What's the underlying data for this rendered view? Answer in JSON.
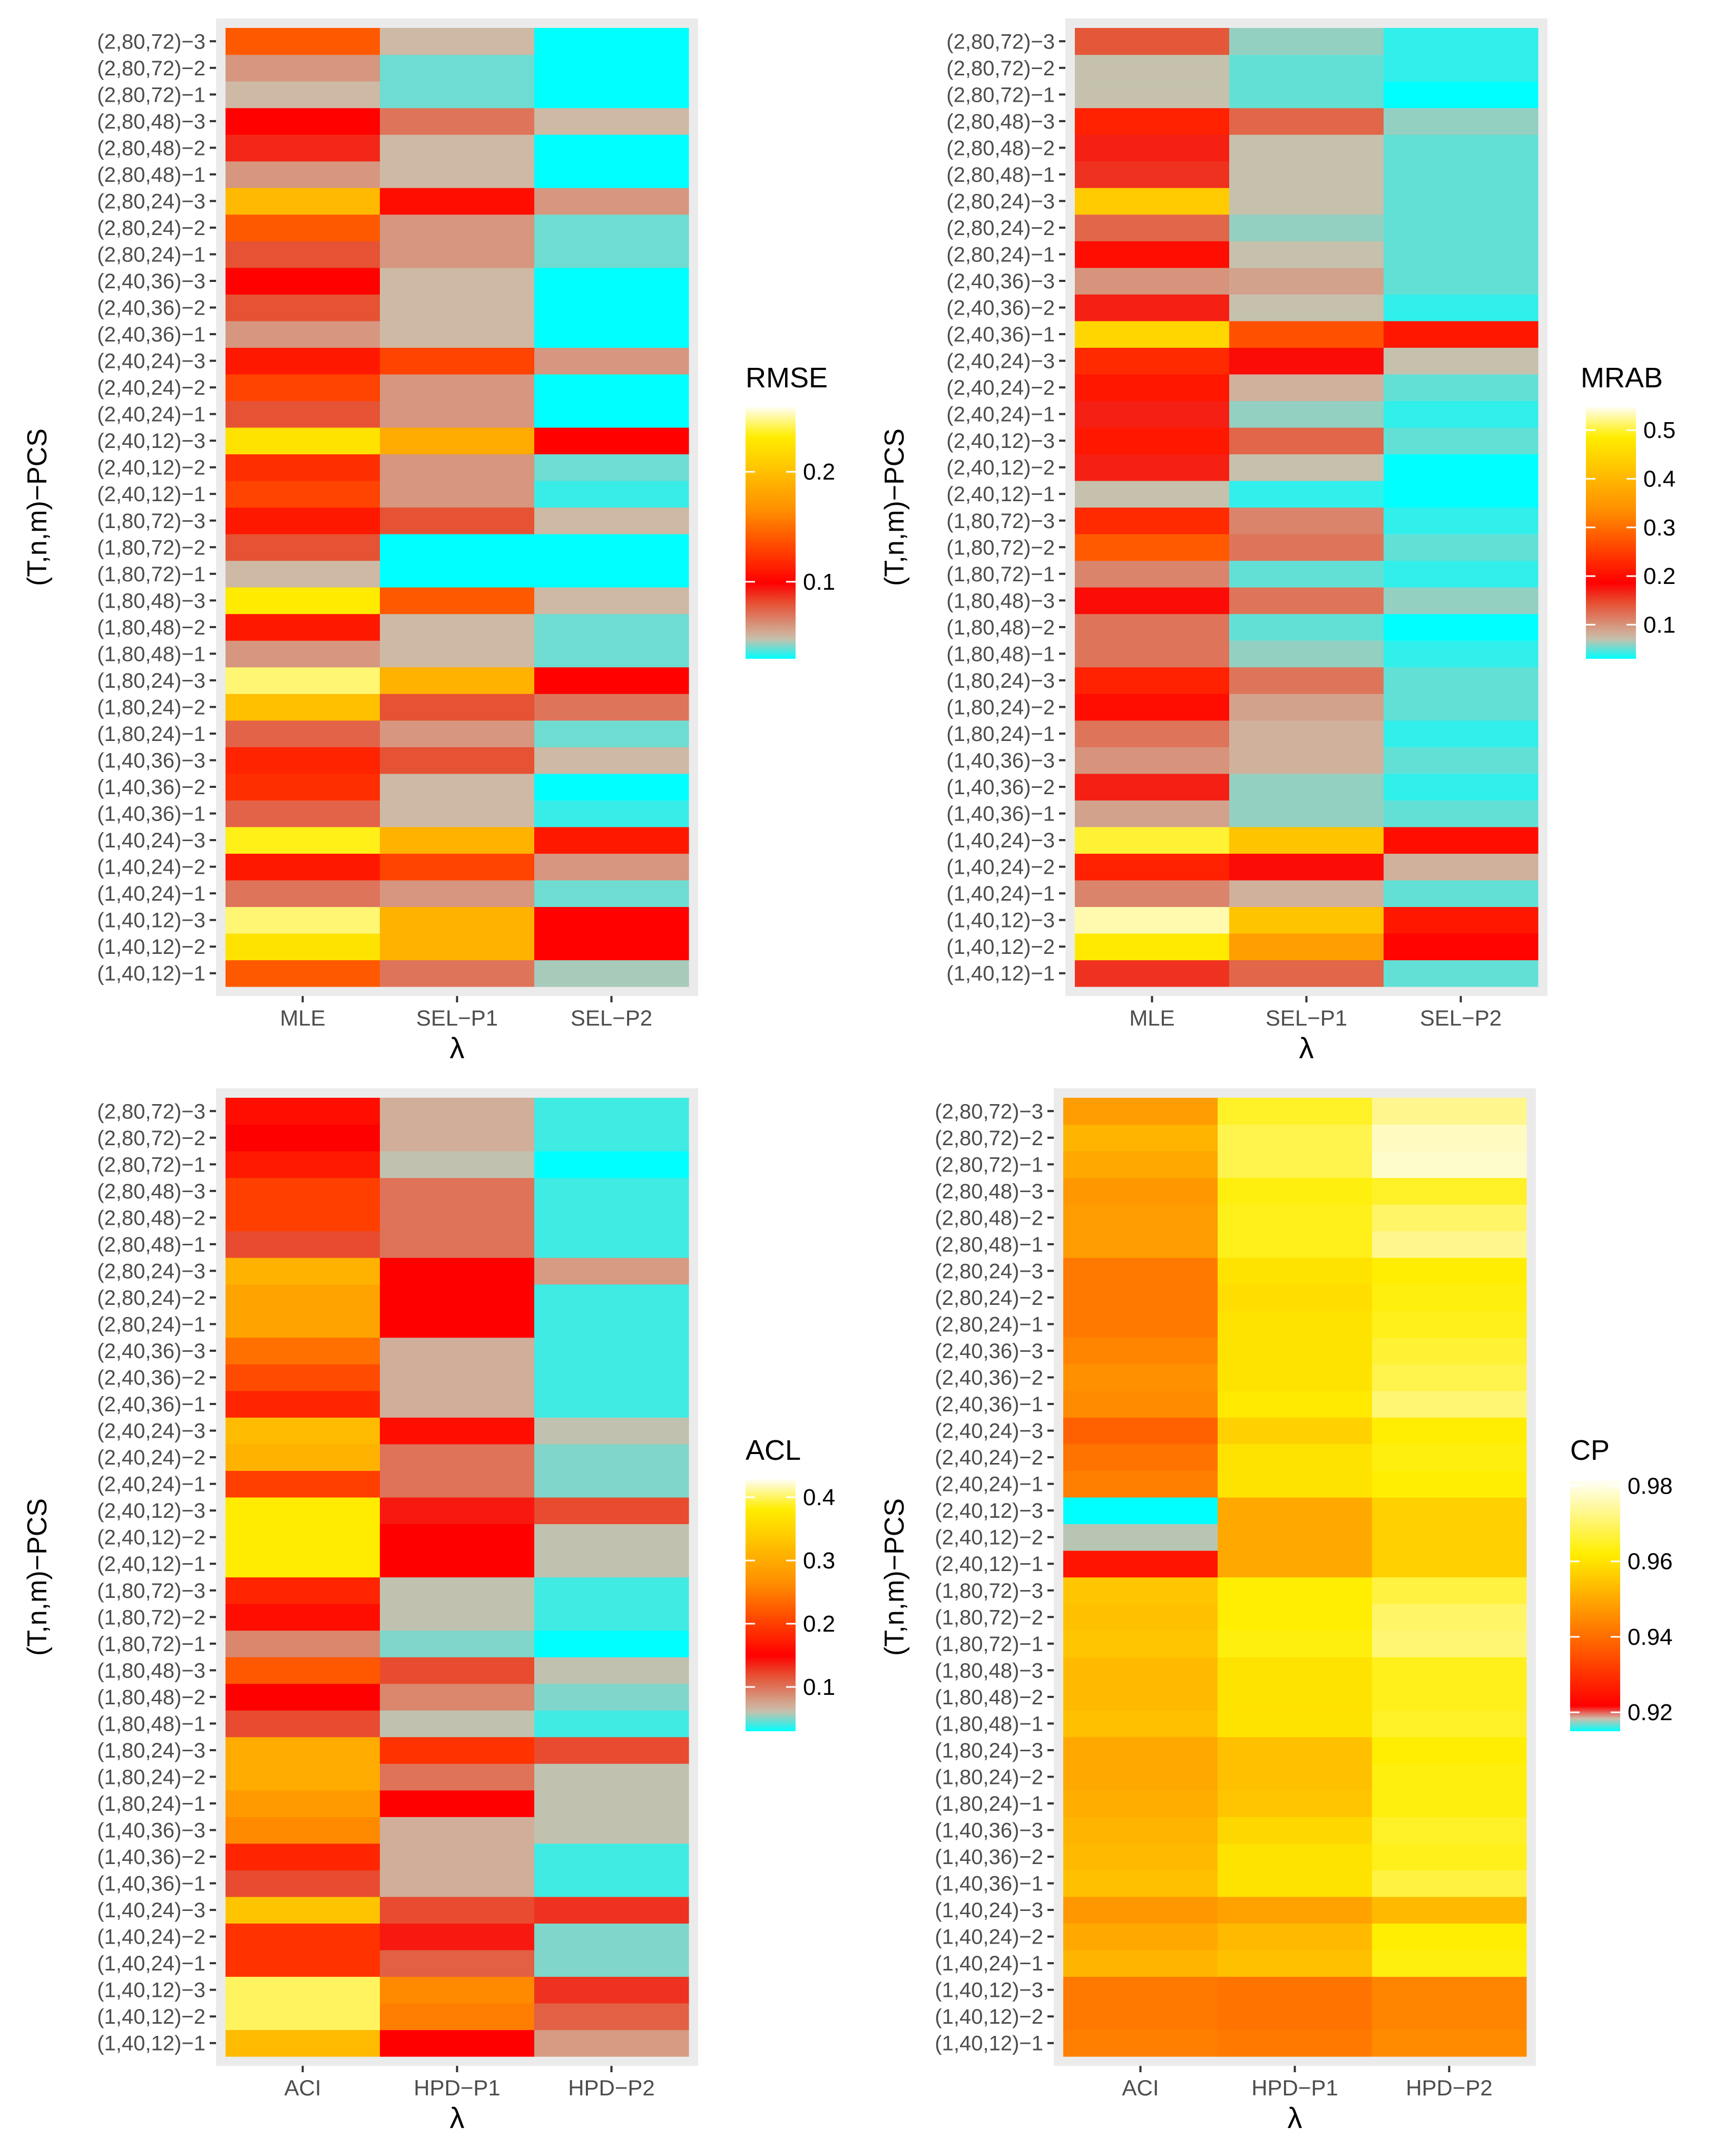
{
  "chart_data": [
    {
      "type": "heatmap",
      "ylabel": "(T,n,m)−PCS",
      "xlabel": "λ",
      "categories": [
        "MLE",
        "SEL−P1",
        "SEL−P2"
      ],
      "legend": {
        "title": "RMSE",
        "ticks": [
          0.1,
          0.2
        ],
        "range": [
          0.03,
          0.26
        ],
        "position": "right"
      },
      "rows": [
        "(1,40,12)−1",
        "(1,40,12)−2",
        "(1,40,12)−3",
        "(1,40,24)−1",
        "(1,40,24)−2",
        "(1,40,24)−3",
        "(1,40,36)−1",
        "(1,40,36)−2",
        "(1,40,36)−3",
        "(1,80,24)−1",
        "(1,80,24)−2",
        "(1,80,24)−3",
        "(1,80,48)−1",
        "(1,80,48)−2",
        "(1,80,48)−3",
        "(1,80,72)−1",
        "(1,80,72)−2",
        "(1,80,72)−3",
        "(2,40,12)−1",
        "(2,40,12)−2",
        "(2,40,12)−3",
        "(2,40,24)−1",
        "(2,40,24)−2",
        "(2,40,24)−3",
        "(2,40,36)−1",
        "(2,40,36)−2",
        "(2,40,36)−3",
        "(2,80,24)−1",
        "(2,80,24)−2",
        "(2,80,24)−3",
        "(2,80,48)−1",
        "(2,80,48)−2",
        "(2,80,48)−3",
        "(2,80,72)−1",
        "(2,80,72)−2",
        "(2,80,72)−3"
      ],
      "values": [
        [
          0.14,
          0.07,
          0.045
        ],
        [
          0.225,
          0.19,
          0.1
        ],
        [
          0.245,
          0.19,
          0.1
        ],
        [
          0.07,
          0.06,
          0.04
        ],
        [
          0.11,
          0.13,
          0.06
        ],
        [
          0.235,
          0.19,
          0.11
        ],
        [
          0.075,
          0.05,
          0.035
        ],
        [
          0.12,
          0.05,
          0.03
        ],
        [
          0.115,
          0.08,
          0.05
        ],
        [
          0.075,
          0.06,
          0.04
        ],
        [
          0.2,
          0.08,
          0.07
        ],
        [
          0.245,
          0.19,
          0.1
        ],
        [
          0.06,
          0.05,
          0.04
        ],
        [
          0.11,
          0.05,
          0.04
        ],
        [
          0.23,
          0.14,
          0.05
        ],
        [
          0.05,
          0.03,
          0.025
        ],
        [
          0.08,
          0.03,
          0.03
        ],
        [
          0.11,
          0.08,
          0.05
        ],
        [
          0.13,
          0.06,
          0.035
        ],
        [
          0.12,
          0.06,
          0.04
        ],
        [
          0.225,
          0.185,
          0.1
        ],
        [
          0.08,
          0.06,
          0.03
        ],
        [
          0.13,
          0.06,
          0.03
        ],
        [
          0.11,
          0.13,
          0.06
        ],
        [
          0.06,
          0.05,
          0.025
        ],
        [
          0.08,
          0.05,
          0.025
        ],
        [
          0.1,
          0.05,
          0.025
        ],
        [
          0.08,
          0.06,
          0.04
        ],
        [
          0.14,
          0.06,
          0.04
        ],
        [
          0.195,
          0.105,
          0.06
        ],
        [
          0.06,
          0.05,
          0.03
        ],
        [
          0.09,
          0.05,
          0.03
        ],
        [
          0.1,
          0.07,
          0.05
        ],
        [
          0.05,
          0.04,
          0.02
        ],
        [
          0.06,
          0.04,
          0.02
        ],
        [
          0.14,
          0.05,
          0.03
        ]
      ]
    },
    {
      "type": "heatmap",
      "ylabel": "(T,n,m)−PCS",
      "xlabel": "λ",
      "categories": [
        "MLE",
        "SEL−P1",
        "SEL−P2"
      ],
      "legend": {
        "title": "MRAB",
        "ticks": [
          0.1,
          0.2,
          0.3,
          0.4,
          0.5
        ],
        "range": [
          0.03,
          0.55
        ],
        "position": "right"
      },
      "rows": [
        "(1,40,12)−1",
        "(1,40,12)−2",
        "(1,40,12)−3",
        "(1,40,24)−1",
        "(1,40,24)−2",
        "(1,40,24)−3",
        "(1,40,36)−1",
        "(1,40,36)−2",
        "(1,40,36)−3",
        "(1,80,24)−1",
        "(1,80,24)−2",
        "(1,80,24)−3",
        "(1,80,48)−1",
        "(1,80,48)−2",
        "(1,80,48)−3",
        "(1,80,72)−1",
        "(1,80,72)−2",
        "(1,80,72)−3",
        "(2,40,12)−1",
        "(2,40,12)−2",
        "(2,40,12)−3",
        "(2,40,24)−1",
        "(2,40,24)−2",
        "(2,40,24)−3",
        "(2,40,36)−1",
        "(2,40,36)−2",
        "(2,40,36)−3",
        "(2,80,24)−1",
        "(2,80,24)−2",
        "(2,80,24)−3",
        "(2,80,48)−1",
        "(2,80,48)−2",
        "(2,80,48)−3",
        "(2,80,72)−1",
        "(2,80,72)−2",
        "(2,80,72)−3"
      ],
      "values": [
        [
          0.16,
          0.13,
          0.05
        ],
        [
          0.48,
          0.36,
          0.19
        ],
        [
          0.53,
          0.42,
          0.21
        ],
        [
          0.11,
          0.08,
          0.05
        ],
        [
          0.22,
          0.18,
          0.08
        ],
        [
          0.5,
          0.42,
          0.2
        ],
        [
          0.09,
          0.06,
          0.05
        ],
        [
          0.17,
          0.06,
          0.04
        ],
        [
          0.1,
          0.08,
          0.05
        ],
        [
          0.12,
          0.08,
          0.04
        ],
        [
          0.2,
          0.09,
          0.05
        ],
        [
          0.22,
          0.12,
          0.05
        ],
        [
          0.12,
          0.06,
          0.04
        ],
        [
          0.12,
          0.05,
          0.03
        ],
        [
          0.18,
          0.12,
          0.06
        ],
        [
          0.11,
          0.05,
          0.04
        ],
        [
          0.28,
          0.12,
          0.05
        ],
        [
          0.23,
          0.11,
          0.04
        ],
        [
          0.07,
          0.04,
          0.02
        ],
        [
          0.17,
          0.07,
          0.03
        ],
        [
          0.21,
          0.13,
          0.05
        ],
        [
          0.17,
          0.06,
          0.04
        ],
        [
          0.21,
          0.08,
          0.05
        ],
        [
          0.23,
          0.18,
          0.07
        ],
        [
          0.45,
          0.27,
          0.21
        ],
        [
          0.17,
          0.07,
          0.04
        ],
        [
          0.1,
          0.09,
          0.05
        ],
        [
          0.2,
          0.07,
          0.05
        ],
        [
          0.13,
          0.06,
          0.05
        ],
        [
          0.43,
          0.07,
          0.05
        ],
        [
          0.16,
          0.07,
          0.05
        ],
        [
          0.17,
          0.07,
          0.05
        ],
        [
          0.22,
          0.13,
          0.06
        ],
        [
          0.07,
          0.05,
          0.03
        ],
        [
          0.07,
          0.05,
          0.04
        ],
        [
          0.14,
          0.06,
          0.04
        ]
      ]
    },
    {
      "type": "heatmap",
      "ylabel": "(T,n,m)−PCS",
      "xlabel": "λ",
      "categories": [
        "ACI",
        "HPD−P1",
        "HPD−P2"
      ],
      "legend": {
        "title": "ACL",
        "ticks": [
          0.1,
          0.2,
          0.3,
          0.4
        ],
        "range": [
          0.03,
          0.43
        ],
        "position": "right"
      },
      "rows": [
        "(1,40,12)−1",
        "(1,40,12)−2",
        "(1,40,12)−3",
        "(1,40,24)−1",
        "(1,40,24)−2",
        "(1,40,24)−3",
        "(1,40,36)−1",
        "(1,40,36)−2",
        "(1,40,36)−3",
        "(1,80,24)−1",
        "(1,80,24)−2",
        "(1,80,24)−3",
        "(1,80,48)−1",
        "(1,80,48)−2",
        "(1,80,48)−3",
        "(1,80,72)−1",
        "(1,80,72)−2",
        "(1,80,72)−3",
        "(2,40,12)−1",
        "(2,40,12)−2",
        "(2,40,12)−3",
        "(2,40,24)−1",
        "(2,40,24)−2",
        "(2,40,24)−3",
        "(2,40,36)−1",
        "(2,40,36)−2",
        "(2,40,36)−3",
        "(2,80,24)−1",
        "(2,80,24)−2",
        "(2,80,24)−3",
        "(2,80,48)−1",
        "(2,80,48)−2",
        "(2,80,48)−3",
        "(2,80,72)−1",
        "(2,80,72)−2",
        "(2,80,72)−3"
      ],
      "values": [
        [
          0.32,
          0.15,
          0.08
        ],
        [
          0.4,
          0.25,
          0.11
        ],
        [
          0.4,
          0.26,
          0.13
        ],
        [
          0.19,
          0.11,
          0.05
        ],
        [
          0.19,
          0.14,
          0.05
        ],
        [
          0.33,
          0.12,
          0.13
        ],
        [
          0.12,
          0.07,
          0.04
        ],
        [
          0.18,
          0.07,
          0.04
        ],
        [
          0.26,
          0.07,
          0.06
        ],
        [
          0.28,
          0.15,
          0.06
        ],
        [
          0.3,
          0.1,
          0.06
        ],
        [
          0.3,
          0.19,
          0.12
        ],
        [
          0.12,
          0.06,
          0.04
        ],
        [
          0.15,
          0.09,
          0.05
        ],
        [
          0.22,
          0.12,
          0.06
        ],
        [
          0.09,
          0.05,
          0.02
        ],
        [
          0.16,
          0.06,
          0.04
        ],
        [
          0.18,
          0.06,
          0.04
        ],
        [
          0.38,
          0.15,
          0.06
        ],
        [
          0.38,
          0.15,
          0.06
        ],
        [
          0.38,
          0.14,
          0.12
        ],
        [
          0.2,
          0.1,
          0.05
        ],
        [
          0.31,
          0.1,
          0.05
        ],
        [
          0.32,
          0.16,
          0.06
        ],
        [
          0.18,
          0.07,
          0.04
        ],
        [
          0.21,
          0.07,
          0.04
        ],
        [
          0.24,
          0.07,
          0.04
        ],
        [
          0.29,
          0.15,
          0.04
        ],
        [
          0.29,
          0.15,
          0.04
        ],
        [
          0.31,
          0.15,
          0.08
        ],
        [
          0.12,
          0.1,
          0.04
        ],
        [
          0.2,
          0.1,
          0.04
        ],
        [
          0.2,
          0.1,
          0.04
        ],
        [
          0.17,
          0.06,
          0.02
        ],
        [
          0.15,
          0.07,
          0.04
        ],
        [
          0.16,
          0.07,
          0.04
        ]
      ]
    },
    {
      "type": "heatmap",
      "ylabel": "(T,n,m)−PCS",
      "xlabel": "λ",
      "categories": [
        "ACI",
        "HPD−P1",
        "HPD−P2"
      ],
      "legend": {
        "title": "CP",
        "ticks": [
          0.92,
          0.94,
          0.96,
          0.98
        ],
        "range": [
          0.915,
          0.982
        ],
        "position": "right"
      },
      "rows": [
        "(1,40,12)−1",
        "(1,40,12)−2",
        "(1,40,12)−3",
        "(1,40,24)−1",
        "(1,40,24)−2",
        "(1,40,24)−3",
        "(1,40,36)−1",
        "(1,40,36)−2",
        "(1,40,36)−3",
        "(1,80,24)−1",
        "(1,80,24)−2",
        "(1,80,24)−3",
        "(1,80,48)−1",
        "(1,80,48)−2",
        "(1,80,48)−3",
        "(1,80,72)−1",
        "(1,80,72)−2",
        "(1,80,72)−3",
        "(2,40,12)−1",
        "(2,40,12)−2",
        "(2,40,12)−3",
        "(2,40,24)−1",
        "(2,40,24)−2",
        "(2,40,24)−3",
        "(2,40,36)−1",
        "(2,40,36)−2",
        "(2,40,36)−3",
        "(2,80,24)−1",
        "(2,80,24)−2",
        "(2,80,24)−3",
        "(2,80,48)−1",
        "(2,80,48)−2",
        "(2,80,48)−3",
        "(2,80,72)−1",
        "(2,80,72)−2",
        "(2,80,72)−3"
      ],
      "values": [
        [
          0.943,
          0.942,
          0.945
        ],
        [
          0.942,
          0.941,
          0.944
        ],
        [
          0.942,
          0.941,
          0.944
        ],
        [
          0.952,
          0.954,
          0.963
        ],
        [
          0.95,
          0.953,
          0.962
        ],
        [
          0.947,
          0.949,
          0.953
        ],
        [
          0.954,
          0.96,
          0.967
        ],
        [
          0.953,
          0.96,
          0.964
        ],
        [
          0.952,
          0.958,
          0.965
        ],
        [
          0.951,
          0.955,
          0.963
        ],
        [
          0.95,
          0.954,
          0.963
        ],
        [
          0.95,
          0.954,
          0.962
        ],
        [
          0.954,
          0.96,
          0.965
        ],
        [
          0.953,
          0.96,
          0.964
        ],
        [
          0.953,
          0.96,
          0.964
        ],
        [
          0.955,
          0.963,
          0.971
        ],
        [
          0.954,
          0.962,
          0.97
        ],
        [
          0.955,
          0.962,
          0.967
        ],
        [
          0.925,
          0.95,
          0.957
        ],
        [
          0.918,
          0.95,
          0.957
        ],
        [
          0.912,
          0.95,
          0.957
        ],
        [
          0.943,
          0.96,
          0.962
        ],
        [
          0.941,
          0.96,
          0.963
        ],
        [
          0.938,
          0.957,
          0.962
        ],
        [
          0.945,
          0.961,
          0.971
        ],
        [
          0.946,
          0.96,
          0.968
        ],
        [
          0.944,
          0.96,
          0.966
        ],
        [
          0.942,
          0.96,
          0.964
        ],
        [
          0.942,
          0.959,
          0.963
        ],
        [
          0.942,
          0.96,
          0.962
        ],
        [
          0.948,
          0.964,
          0.973
        ],
        [
          0.948,
          0.964,
          0.97
        ],
        [
          0.947,
          0.963,
          0.965
        ],
        [
          0.95,
          0.968,
          0.978
        ],
        [
          0.952,
          0.968,
          0.977
        ],
        [
          0.948,
          0.965,
          0.973
        ]
      ]
    }
  ]
}
